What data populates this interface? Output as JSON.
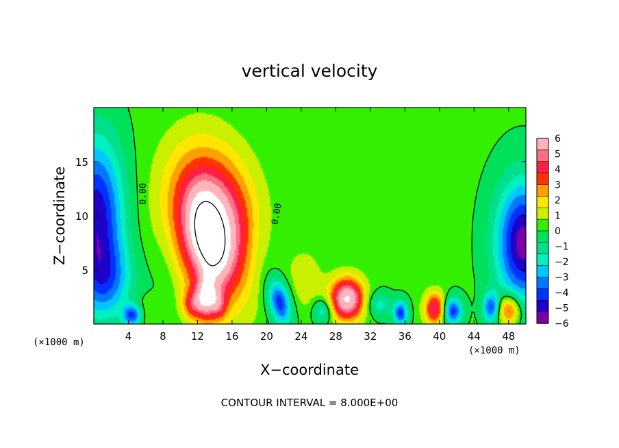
{
  "chart_data": {
    "type": "heatmap",
    "title": "vertical velocity",
    "xlabel": "X−coordinate",
    "ylabel": "Z−coordinate",
    "x_unit_left": "(×1000 m)",
    "x_unit_right": "(×1000 m)",
    "xlim": [
      0,
      50
    ],
    "ylim": [
      0,
      20
    ],
    "x_ticks": [
      4,
      8,
      12,
      16,
      20,
      24,
      28,
      32,
      36,
      40,
      44,
      48
    ],
    "x_tick_labels": [
      "4",
      "8",
      "12",
      "16",
      "20",
      "24",
      "28",
      "32",
      "36",
      "40",
      "44",
      "48"
    ],
    "y_ticks": [
      5,
      10,
      15
    ],
    "y_tick_labels": [
      "5",
      "10",
      "15"
    ],
    "colorbar": {
      "values": [
        6,
        5,
        4,
        3,
        2,
        1,
        0,
        -1,
        -2,
        -3,
        -4,
        -5,
        -6
      ],
      "labels": [
        "6",
        "5",
        "4",
        "3",
        "2",
        "1",
        "0",
        "−1",
        "−2",
        "−3",
        "−4",
        "−5",
        "−6"
      ],
      "range": [
        -6,
        6
      ]
    },
    "contour_labels": [
      "0.00",
      "0.00"
    ],
    "grid": false,
    "legend": "right",
    "features": [
      {
        "kind": "updraft",
        "x": 13.5,
        "z": 8.0,
        "peak": 8.5
      },
      {
        "kind": "updraft",
        "x": 13.0,
        "z": 2.5,
        "peak": 6.5
      },
      {
        "kind": "updraft",
        "x": 11.5,
        "z": 1.8,
        "peak": 4.5
      },
      {
        "kind": "updraft",
        "x": 29.3,
        "z": 2.3,
        "peak": 6.5
      },
      {
        "kind": "updraft",
        "x": 39.5,
        "z": 1.4,
        "peak": 4.5
      },
      {
        "kind": "updraft",
        "x": 48.0,
        "z": 1.3,
        "peak": 4.0
      },
      {
        "kind": "downdraft",
        "x": 0.5,
        "z": 10.0,
        "peak": -5.0
      },
      {
        "kind": "downdraft",
        "x": 49.5,
        "z": 7.5,
        "peak": -5.5
      },
      {
        "kind": "downdraft",
        "x": 21.5,
        "z": 2.0,
        "peak": -4.5
      },
      {
        "kind": "downdraft",
        "x": 4.5,
        "z": 0.8,
        "peak": -4.5
      },
      {
        "kind": "downdraft",
        "x": 35.5,
        "z": 1.0,
        "peak": -4.5
      },
      {
        "kind": "downdraft",
        "x": 41.5,
        "z": 1.2,
        "peak": -4.5
      },
      {
        "kind": "downdraft",
        "x": 46.0,
        "z": 1.5,
        "peak": -4.0
      }
    ]
  },
  "footer": {
    "contour_interval": "CONTOUR INTERVAL = 8.000E+00"
  },
  "colors": {
    "background": "#ffffff",
    "frame": "#000000",
    "palette": [
      "#7a00a8",
      "#1e00c8",
      "#0032ff",
      "#0078ff",
      "#00c8ff",
      "#00f0c0",
      "#00e08c",
      "#00e05a",
      "#32f000",
      "#c8f000",
      "#ffe600",
      "#ffa000",
      "#ff3200",
      "#ff1e46",
      "#ff6e82",
      "#ffb4bc"
    ]
  }
}
